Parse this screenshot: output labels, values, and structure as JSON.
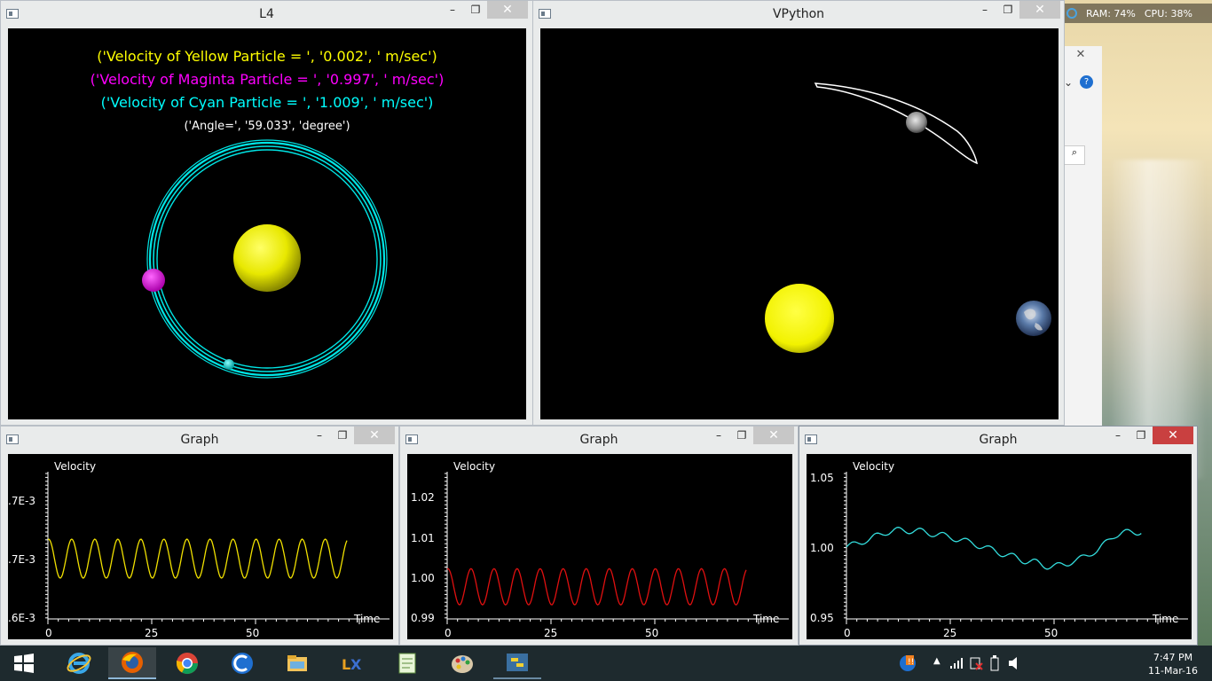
{
  "system": {
    "ram_label": "RAM: 74%",
    "cpu_label": "CPU: 38%"
  },
  "l4_window": {
    "title": "L4",
    "yellow_velocity": "('Velocity of Yellow Particle = ', '0.002', ' m/sec')",
    "magenta_velocity": "('Velocity of Maginta Particle = ', '0.997', ' m/sec')",
    "cyan_velocity": "('Velocity of Cyan Particle = ', '1.009', ' m/sec')",
    "angle": "('Angle=', '59.033', 'degree')",
    "colors": {
      "yellow": "#ffff00",
      "magenta": "#ff00ff",
      "cyan": "#00ffff"
    }
  },
  "vpython_window": {
    "title": "VPython"
  },
  "graph1": {
    "title": "Graph",
    "ylabel": "Velocity",
    "xlabel": "Time",
    "ytick_top": ".7E-3",
    "ytick_mid": ".7E-3",
    "ytick_bot": ".6E-3",
    "xticks": [
      "0",
      "25",
      "50"
    ]
  },
  "graph2": {
    "title": "Graph",
    "ylabel": "Velocity",
    "xlabel": "Time",
    "yticks": [
      "1.02",
      "1.01",
      "1.00",
      "0.99"
    ],
    "xticks": [
      "0",
      "25",
      "50"
    ]
  },
  "graph3": {
    "title": "Graph",
    "ylabel": "Velocity",
    "xlabel": "Time",
    "yticks": [
      "1.05",
      "1.00",
      "0.95"
    ],
    "xticks": [
      "0",
      "25",
      "50"
    ]
  },
  "window_controls": {
    "minimize": "–",
    "maximize": "❐",
    "close": "✕"
  },
  "taskbar": {
    "apps": [
      "start",
      "internet-explorer",
      "firefox",
      "chrome",
      "ccleaner",
      "file-explorer",
      "lyx",
      "notepad",
      "paint",
      "python"
    ],
    "clock_time": "7:47 PM",
    "clock_date": "11-Mar-16"
  },
  "chart_data": [
    {
      "type": "line",
      "ylabel": "Velocity",
      "xlabel": "Time",
      "xlim": [
        0,
        75
      ],
      "series": [
        {
          "color": "#ffff00",
          "description": "sinusoidal, period ~5.5",
          "x": [
            0,
            72
          ],
          "amplitude_relative": 1
        }
      ]
    },
    {
      "type": "line",
      "ylabel": "Velocity",
      "xlabel": "Time",
      "xlim": [
        0,
        75
      ],
      "ylim": [
        0.99,
        1.025
      ],
      "series": [
        {
          "color": "#ff0000",
          "center": 0.998,
          "amplitude": 0.0045,
          "x_end": 72
        }
      ]
    },
    {
      "type": "line",
      "ylabel": "Velocity",
      "xlabel": "Time",
      "xlim": [
        0,
        75
      ],
      "ylim": [
        0.95,
        1.05
      ],
      "series": [
        {
          "color": "#33dddd",
          "x": [
            0,
            5,
            10,
            15,
            20,
            25,
            30,
            35,
            40,
            45,
            50,
            55,
            60,
            65,
            70
          ],
          "y": [
            1.001,
            1.006,
            1.012,
            1.013,
            1.011,
            1.008,
            1.004,
            0.999,
            0.994,
            0.99,
            0.987,
            0.991,
            0.998,
            1.01,
            1.012
          ]
        }
      ]
    }
  ]
}
